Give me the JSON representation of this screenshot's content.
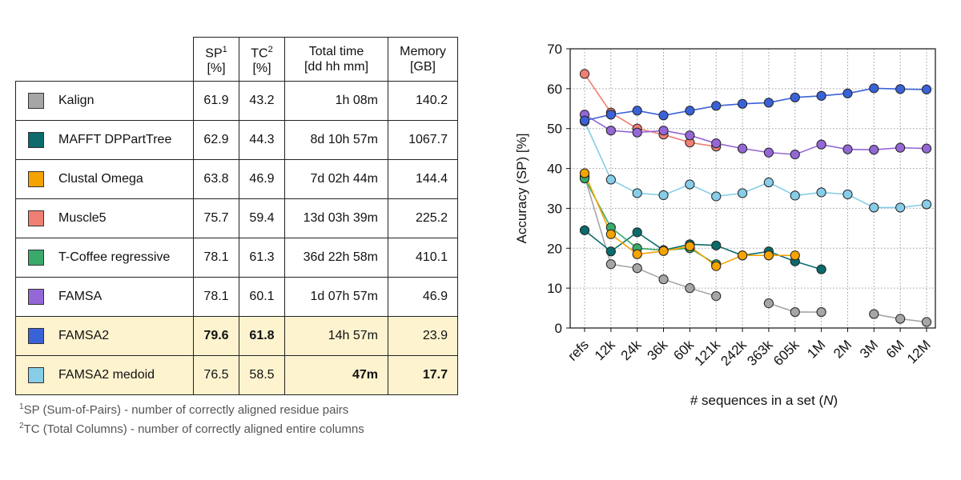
{
  "table": {
    "headers": {
      "sp": "SP",
      "sp_sup": "1",
      "sp_unit": "[%]",
      "tc": "TC",
      "tc_sup": "2",
      "tc_unit": "[%]",
      "time": "Total time",
      "time_unit": "[dd hh mm]",
      "mem": "Memory",
      "mem_unit": "[GB]"
    },
    "rows": [
      {
        "name": "Kalign",
        "color": "#a6a6a6",
        "sp": "61.9",
        "tc": "43.2",
        "time": "1h 08m",
        "mem": "140.2"
      },
      {
        "name": "MAFFT DPPartTree",
        "color": "#0b6b6b",
        "sp": "62.9",
        "tc": "44.3",
        "time": "8d 10h 57m",
        "mem": "1067.7"
      },
      {
        "name": "Clustal Omega",
        "color": "#f4a300",
        "sp": "63.8",
        "tc": "46.9",
        "time": "7d 02h 44m",
        "mem": "144.4"
      },
      {
        "name": "Muscle5",
        "color": "#f07f73",
        "sp": "75.7",
        "tc": "59.4",
        "time": "13d 03h 39m",
        "mem": "225.2"
      },
      {
        "name": "T-Coffee regressive",
        "color": "#3aaa6a",
        "sp": "78.1",
        "tc": "61.3",
        "time": "36d 22h 58m",
        "mem": "410.1"
      },
      {
        "name": "FAMSA",
        "color": "#9467d6",
        "sp": "78.1",
        "tc": "60.1",
        "time": "1d 07h 57m",
        "mem": "46.9"
      },
      {
        "name": "FAMSA2",
        "color": "#3a62d8",
        "sp": "79.6",
        "tc": "61.8",
        "time": "14h 57m",
        "mem": "23.9"
      },
      {
        "name": "FAMSA2 medoid",
        "color": "#87cde8",
        "sp": "76.5",
        "tc": "58.5",
        "time": "47m",
        "mem": "17.7"
      }
    ]
  },
  "footnotes": {
    "n1": "1",
    "f1": "SP (Sum-of-Pairs) - number of correctly aligned residue pairs",
    "n2": "2",
    "f2": "TC (Total Columns) - number of correctly aligned entire columns"
  },
  "chart_data": {
    "type": "line",
    "xlabel_prefix": "# sequences in a set (",
    "xlabel_var": "N",
    "xlabel_suffix": ")",
    "ylabel": "Accuracy (SP) [%]",
    "ylim": [
      0,
      70
    ],
    "yticks": [
      0,
      10,
      20,
      30,
      40,
      50,
      60,
      70
    ],
    "grid": true,
    "categories": [
      "refs",
      "12k",
      "24k",
      "36k",
      "60k",
      "121k",
      "242k",
      "363k",
      "605k",
      "1M",
      "2M",
      "3M",
      "6M",
      "12M"
    ],
    "series": [
      {
        "name": "FAMSA2",
        "color": "#3a62d8",
        "values": [
          52,
          53.5,
          54.5,
          53.3,
          54.5,
          55.7,
          56.2,
          56.5,
          57.8,
          58.2,
          58.8,
          60.1,
          59.9,
          59.8
        ]
      },
      {
        "name": "FAMSA",
        "color": "#9467d6",
        "values": [
          53.5,
          49.5,
          49,
          49.5,
          48.3,
          46.3,
          45,
          44,
          43.5,
          46,
          44.8,
          44.7,
          45.2,
          45
        ]
      },
      {
        "name": "Muscle5",
        "color": "#f07f73",
        "values": [
          63.7,
          54,
          50,
          48.5,
          46.5,
          45.5,
          null,
          null,
          null,
          null,
          null,
          null,
          null,
          null
        ]
      },
      {
        "name": "FAMSA2 medoid",
        "color": "#87cde8",
        "values": [
          51.8,
          37.2,
          33.8,
          33.3,
          36,
          33,
          33.8,
          36.5,
          33.2,
          34,
          33.5,
          30.2,
          30.2,
          31
        ]
      },
      {
        "name": "Clustal Omega",
        "color": "#f4a300",
        "values": [
          38.8,
          23.5,
          18.5,
          19.3,
          20.5,
          15.5,
          18.2,
          18.2,
          18.2,
          null,
          null,
          null,
          null,
          null
        ]
      },
      {
        "name": "T-Coffee regressive",
        "color": "#3aaa6a",
        "values": [
          37.5,
          25.2,
          20,
          19.5,
          20,
          16,
          null,
          null,
          null,
          null,
          null,
          null,
          null,
          null
        ]
      },
      {
        "name": "MAFFT DPPartTree",
        "color": "#0b6b6b",
        "values": [
          24.5,
          19.2,
          24,
          19.5,
          21,
          20.7,
          18.2,
          19.2,
          16.7,
          14.7,
          null,
          null,
          null,
          null
        ]
      },
      {
        "name": "Kalign",
        "color": "#a6a6a6",
        "values": [
          38,
          16,
          15,
          12.2,
          10,
          8,
          null,
          6.2,
          4,
          4,
          null,
          3.5,
          2.3,
          1.5
        ]
      }
    ]
  }
}
